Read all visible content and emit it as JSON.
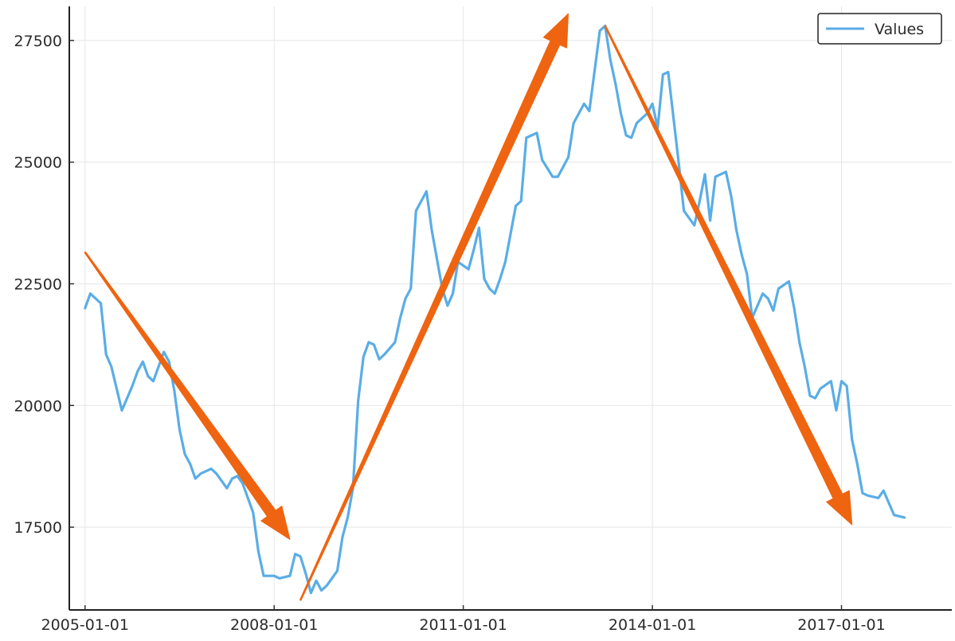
{
  "chart_data": {
    "type": "line",
    "title": "",
    "xlabel": "",
    "ylabel": "",
    "grid": true,
    "legend_position": "top-right",
    "x_tick_labels": [
      "2005-01-01",
      "2008-01-01",
      "2011-01-01",
      "2014-01-01",
      "2017-01-01"
    ],
    "y_tick_labels": [
      "17500",
      "20000",
      "22500",
      "25000",
      "27500"
    ],
    "y_ticks": [
      17500,
      20000,
      22500,
      25000,
      27500
    ],
    "xlim": [
      "2004-10-01",
      "2018-10-01"
    ],
    "ylim": [
      15800,
      28200
    ],
    "series": [
      {
        "name": "Values",
        "color": "#5aade6",
        "x": [
          "2005-01",
          "2005-02",
          "2005-04",
          "2005-05",
          "2005-06",
          "2005-08",
          "2005-10",
          "2005-11",
          "2005-12",
          "2006-01",
          "2006-02",
          "2006-04",
          "2006-05",
          "2006-06",
          "2006-07",
          "2006-08",
          "2006-09",
          "2006-10",
          "2006-11",
          "2007-01",
          "2007-02",
          "2007-04",
          "2007-05",
          "2007-06",
          "2007-07",
          "2007-09",
          "2007-10",
          "2007-11",
          "2008-01",
          "2008-02",
          "2008-04",
          "2008-05",
          "2008-06",
          "2008-07",
          "2008-08",
          "2008-09",
          "2008-10",
          "2008-11",
          "2009-01",
          "2009-02",
          "2009-03",
          "2009-04",
          "2009-05",
          "2009-06",
          "2009-07",
          "2009-08",
          "2009-09",
          "2009-10",
          "2009-12",
          "2010-01",
          "2010-02",
          "2010-03",
          "2010-04",
          "2010-06",
          "2010-07",
          "2010-09",
          "2010-10",
          "2010-11",
          "2010-12",
          "2011-02",
          "2011-03",
          "2011-04",
          "2011-05",
          "2011-06",
          "2011-07",
          "2011-08",
          "2011-09",
          "2011-11",
          "2011-12",
          "2012-01",
          "2012-03",
          "2012-04",
          "2012-06",
          "2012-07",
          "2012-09",
          "2012-10",
          "2012-12",
          "2013-01",
          "2013-03",
          "2013-04",
          "2013-05",
          "2013-06",
          "2013-07",
          "2013-08",
          "2013-09",
          "2013-10",
          "2013-11",
          "2013-12",
          "2014-01",
          "2014-02",
          "2014-03",
          "2014-04",
          "2014-06",
          "2014-07",
          "2014-09",
          "2014-10",
          "2014-11",
          "2014-12",
          "2015-01",
          "2015-03",
          "2015-04",
          "2015-05",
          "2015-06",
          "2015-07",
          "2015-08",
          "2015-09",
          "2015-10",
          "2015-11",
          "2015-12",
          "2016-01",
          "2016-03",
          "2016-04",
          "2016-05",
          "2016-06",
          "2016-07",
          "2016-08",
          "2016-09",
          "2016-11",
          "2016-12",
          "2017-01",
          "2017-02",
          "2017-03",
          "2017-04",
          "2017-05",
          "2017-06",
          "2017-08",
          "2017-09",
          "2017-11",
          "2018-01"
        ],
        "values": [
          22000,
          22300,
          22100,
          21050,
          20800,
          19900,
          20400,
          20700,
          20900,
          20600,
          20500,
          21100,
          20900,
          20300,
          19500,
          19000,
          18800,
          18500,
          18600,
          18700,
          18600,
          18300,
          18500,
          18550,
          18400,
          17800,
          17000,
          16500,
          16500,
          16450,
          16500,
          16950,
          16900,
          16550,
          16150,
          16400,
          16200,
          16300,
          16600,
          17300,
          17700,
          18300,
          20100,
          21000,
          21300,
          21250,
          20950,
          21050,
          21300,
          21800,
          22200,
          22400,
          24000,
          24400,
          23600,
          22400,
          22050,
          22300,
          22950,
          22800,
          23200,
          23650,
          22600,
          22400,
          22300,
          22600,
          22950,
          24100,
          24200,
          25500,
          25600,
          25050,
          24700,
          24700,
          25100,
          25800,
          26200,
          26050,
          27700,
          27800,
          27100,
          26600,
          26000,
          25550,
          25500,
          25800,
          25900,
          26000,
          26200,
          25700,
          26800,
          26850,
          25000,
          24000,
          23700,
          24200,
          24750,
          23800,
          24700,
          24800,
          24300,
          23600,
          23100,
          22700,
          21800,
          22050,
          22300,
          22200,
          21950,
          22400,
          22550,
          22000,
          21300,
          20800,
          20200,
          20150,
          20350,
          20500,
          19900,
          20500,
          20400,
          19300,
          18800,
          18200,
          18150,
          18100,
          18250,
          17750,
          17700
        ]
      }
    ],
    "annotations": [
      {
        "type": "arrow",
        "color": "#ee6411",
        "from": {
          "x": "2005-01",
          "y": 23150
        },
        "to": {
          "x": "2008-04",
          "y": 17250
        }
      },
      {
        "type": "arrow",
        "color": "#ee6411",
        "from": {
          "x": "2008-06",
          "y": 16000
        },
        "to": {
          "x": "2012-09",
          "y": 28050
        }
      },
      {
        "type": "arrow",
        "color": "#ee6411",
        "from": {
          "x": "2013-04",
          "y": 27800
        },
        "to": {
          "x": "2017-03",
          "y": 17550
        }
      }
    ]
  }
}
